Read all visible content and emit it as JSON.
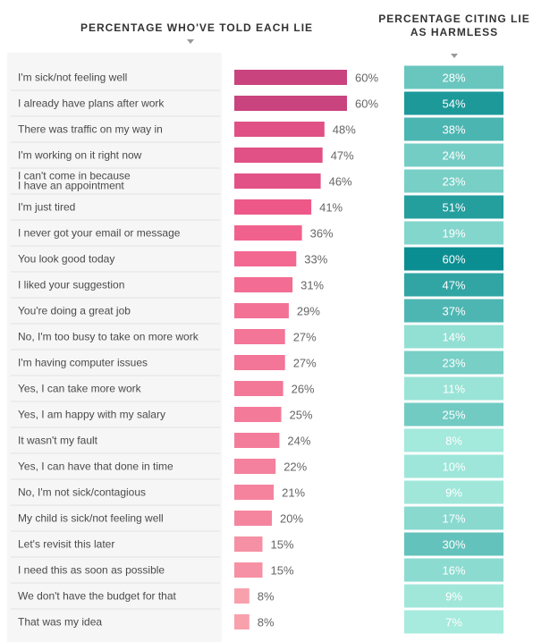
{
  "headers": {
    "left": "PERCENTAGE WHO'VE TOLD EACH LIE",
    "right_line1": "PERCENTAGE CITING LIE",
    "right_line2": "AS HARMLESS"
  },
  "colors": {
    "told_dark": "#c9437f",
    "told_mid": "#f05a8a",
    "told_light": "#f8a0ac",
    "harmless_dark": "#0b8e91",
    "harmless_light": "#a6ebdd"
  },
  "chart_data": {
    "type": "bar",
    "orientation": "horizontal",
    "categories": [
      [
        "I'm sick/not feeling well"
      ],
      [
        "I already have plans after work"
      ],
      [
        "There was traffic on my way in"
      ],
      [
        "I'm working on it right now"
      ],
      [
        "I can't come in because",
        "I have an appointment"
      ],
      [
        "I'm just tired"
      ],
      [
        "I never got your email or message"
      ],
      [
        "You look good today"
      ],
      [
        "I liked your suggestion"
      ],
      [
        "You're doing a great job"
      ],
      [
        "No, I'm too busy to take on more work"
      ],
      [
        "I'm having computer issues"
      ],
      [
        "Yes, I can take more work"
      ],
      [
        "Yes, I am happy with my salary"
      ],
      [
        "It wasn't my fault"
      ],
      [
        "Yes, I can have that done in time"
      ],
      [
        "No, I'm not sick/contagious"
      ],
      [
        "My child is sick/not feeling well"
      ],
      [
        "Let's revisit this later"
      ],
      [
        "I need this as soon as possible"
      ],
      [
        "We don't have the budget for that"
      ],
      [
        "That was my idea"
      ]
    ],
    "series": [
      {
        "name": "PERCENTAGE WHO'VE TOLD EACH LIE",
        "values": [
          60,
          60,
          48,
          47,
          46,
          41,
          36,
          33,
          31,
          29,
          27,
          27,
          26,
          25,
          24,
          22,
          21,
          20,
          15,
          15,
          8,
          8
        ],
        "labels": [
          "60%",
          "60%",
          "48%",
          "47%",
          "46%",
          "41%",
          "36%",
          "33%",
          "31%",
          "29%",
          "27%",
          "27%",
          "26%",
          "25%",
          "24%",
          "22%",
          "21%",
          "20%",
          "15%",
          "15%",
          "8%",
          "8%"
        ]
      },
      {
        "name": "PERCENTAGE CITING LIE AS HARMLESS",
        "values": [
          28,
          54,
          38,
          24,
          23,
          51,
          19,
          60,
          47,
          37,
          14,
          23,
          11,
          25,
          8,
          10,
          9,
          17,
          30,
          16,
          9,
          7
        ],
        "labels": [
          "28%",
          "54%",
          "38%",
          "24%",
          "23%",
          "51%",
          "19%",
          "60%",
          "47%",
          "37%",
          "14%",
          "23%",
          "11%",
          "25%",
          "8%",
          "10%",
          "9%",
          "17%",
          "30%",
          "16%",
          "9%",
          "7%"
        ]
      }
    ],
    "xlim": [
      0,
      60
    ]
  }
}
